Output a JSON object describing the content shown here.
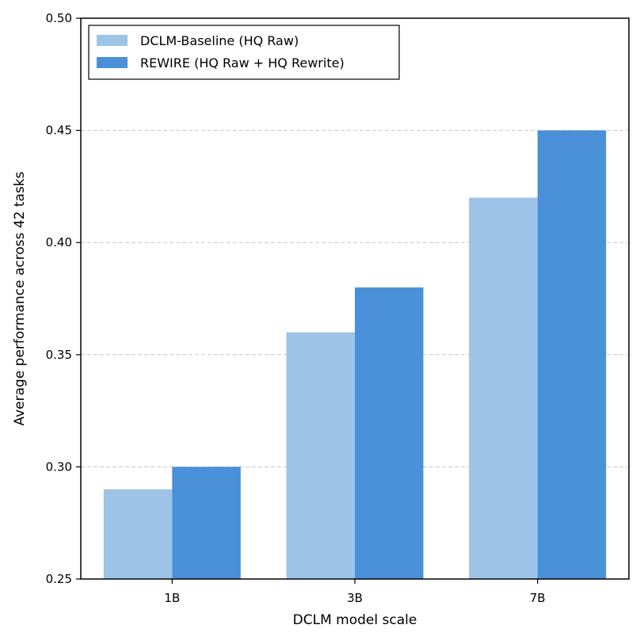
{
  "chart_data": {
    "type": "bar",
    "title": "",
    "xlabel": "DCLM model scale",
    "ylabel": "Average performance across 42 tasks",
    "categories": [
      "1B",
      "3B",
      "7B"
    ],
    "series": [
      {
        "name": "DCLM-Baseline (HQ Raw)",
        "values": [
          0.29,
          0.36,
          0.42
        ],
        "color": "#9dc3e6"
      },
      {
        "name": "REWIRE (HQ Raw + HQ Rewrite)",
        "values": [
          0.3,
          0.38,
          0.45
        ],
        "color": "#4a90d9"
      }
    ],
    "ylim": [
      0.25,
      0.5
    ],
    "yticks": [
      "0.25",
      "0.30",
      "0.35",
      "0.40",
      "0.45",
      "0.50"
    ],
    "grid": "y-dashed",
    "legend": "top-left"
  }
}
